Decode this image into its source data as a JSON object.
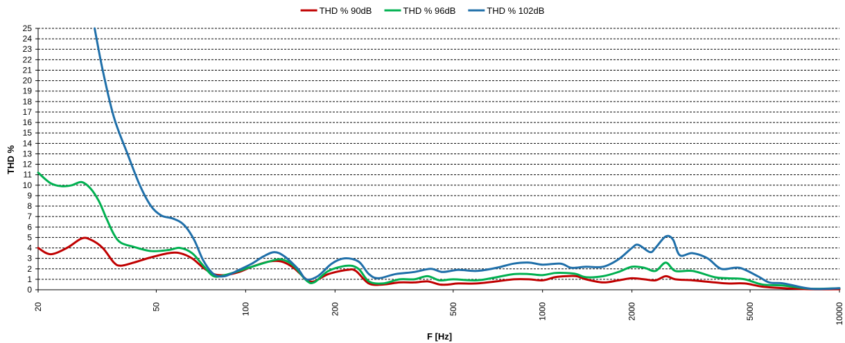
{
  "chart_data": {
    "type": "line",
    "xscale": "log",
    "xlabel": "F [Hz]",
    "ylabel": "THD %",
    "xlim": [
      20,
      10000
    ],
    "ylim": [
      0,
      25
    ],
    "yticks": [
      0,
      1,
      2,
      3,
      4,
      5,
      6,
      7,
      8,
      9,
      10,
      11,
      12,
      13,
      14,
      15,
      16,
      17,
      18,
      19,
      20,
      21,
      22,
      23,
      24,
      25
    ],
    "xticks": [
      20,
      50,
      100,
      200,
      500,
      1000,
      2000,
      5000,
      10000
    ],
    "grid": "horizontal-dashed",
    "legend_position": "top-center",
    "series": [
      {
        "name": "THD % 90dB",
        "color": "#C00000",
        "points": [
          [
            20,
            4.0
          ],
          [
            22,
            3.4
          ],
          [
            25,
            4.0
          ],
          [
            28,
            4.9
          ],
          [
            30,
            4.8
          ],
          [
            33,
            4.0
          ],
          [
            36,
            2.6
          ],
          [
            38,
            2.3
          ],
          [
            42,
            2.6
          ],
          [
            48,
            3.1
          ],
          [
            55,
            3.5
          ],
          [
            60,
            3.5
          ],
          [
            66,
            3.0
          ],
          [
            72,
            2.1
          ],
          [
            78,
            1.5
          ],
          [
            85,
            1.4
          ],
          [
            95,
            1.7
          ],
          [
            105,
            2.2
          ],
          [
            120,
            2.7
          ],
          [
            132,
            2.7
          ],
          [
            145,
            2.1
          ],
          [
            160,
            1.0
          ],
          [
            170,
            0.8
          ],
          [
            190,
            1.5
          ],
          [
            220,
            1.9
          ],
          [
            235,
            1.8
          ],
          [
            260,
            0.6
          ],
          [
            290,
            0.5
          ],
          [
            330,
            0.7
          ],
          [
            370,
            0.7
          ],
          [
            410,
            0.8
          ],
          [
            450,
            0.5
          ],
          [
            480,
            0.5
          ],
          [
            520,
            0.6
          ],
          [
            600,
            0.6
          ],
          [
            700,
            0.8
          ],
          [
            800,
            1.0
          ],
          [
            900,
            1.0
          ],
          [
            1000,
            0.9
          ],
          [
            1100,
            1.2
          ],
          [
            1200,
            1.3
          ],
          [
            1300,
            1.3
          ],
          [
            1400,
            1.0
          ],
          [
            1600,
            0.7
          ],
          [
            1800,
            0.9
          ],
          [
            2000,
            1.1
          ],
          [
            2200,
            1.0
          ],
          [
            2400,
            0.9
          ],
          [
            2600,
            1.3
          ],
          [
            2800,
            1.0
          ],
          [
            3200,
            0.9
          ],
          [
            3800,
            0.7
          ],
          [
            4200,
            0.6
          ],
          [
            4800,
            0.6
          ],
          [
            5500,
            0.3
          ],
          [
            6500,
            0.15
          ],
          [
            8000,
            0.05
          ],
          [
            10000,
            0.05
          ]
        ]
      },
      {
        "name": "THD % 96dB",
        "color": "#00B050",
        "points": [
          [
            20,
            11.2
          ],
          [
            22,
            10.2
          ],
          [
            24,
            9.9
          ],
          [
            26,
            10.0
          ],
          [
            28,
            10.3
          ],
          [
            30,
            9.7
          ],
          [
            32,
            8.5
          ],
          [
            34,
            6.8
          ],
          [
            36,
            5.3
          ],
          [
            38,
            4.5
          ],
          [
            42,
            4.1
          ],
          [
            48,
            3.7
          ],
          [
            55,
            3.8
          ],
          [
            60,
            4.0
          ],
          [
            66,
            3.5
          ],
          [
            72,
            2.3
          ],
          [
            78,
            1.3
          ],
          [
            85,
            1.4
          ],
          [
            95,
            1.8
          ],
          [
            105,
            2.2
          ],
          [
            120,
            2.7
          ],
          [
            132,
            2.9
          ],
          [
            145,
            2.3
          ],
          [
            160,
            0.9
          ],
          [
            170,
            0.7
          ],
          [
            190,
            1.8
          ],
          [
            220,
            2.3
          ],
          [
            240,
            2.0
          ],
          [
            260,
            0.8
          ],
          [
            290,
            0.6
          ],
          [
            330,
            1.0
          ],
          [
            370,
            1.0
          ],
          [
            410,
            1.3
          ],
          [
            450,
            0.9
          ],
          [
            500,
            1.0
          ],
          [
            600,
            0.9
          ],
          [
            700,
            1.2
          ],
          [
            800,
            1.5
          ],
          [
            900,
            1.5
          ],
          [
            1000,
            1.4
          ],
          [
            1100,
            1.6
          ],
          [
            1200,
            1.6
          ],
          [
            1300,
            1.5
          ],
          [
            1400,
            1.2
          ],
          [
            1600,
            1.3
          ],
          [
            1800,
            1.7
          ],
          [
            2000,
            2.2
          ],
          [
            2200,
            2.1
          ],
          [
            2400,
            1.8
          ],
          [
            2600,
            2.6
          ],
          [
            2800,
            1.8
          ],
          [
            3200,
            1.8
          ],
          [
            3800,
            1.2
          ],
          [
            4200,
            1.1
          ],
          [
            4800,
            1.0
          ],
          [
            5500,
            0.5
          ],
          [
            6500,
            0.4
          ],
          [
            8000,
            0.1
          ],
          [
            10000,
            0.15
          ]
        ]
      },
      {
        "name": "THD % 102dB",
        "color": "#1F6FA9",
        "points": [
          [
            31,
            25.0
          ],
          [
            33,
            21.0
          ],
          [
            36,
            16.5
          ],
          [
            40,
            13.0
          ],
          [
            44,
            10.0
          ],
          [
            48,
            8.0
          ],
          [
            52,
            7.1
          ],
          [
            57,
            6.8
          ],
          [
            62,
            6.2
          ],
          [
            67,
            4.8
          ],
          [
            72,
            2.8
          ],
          [
            78,
            1.5
          ],
          [
            85,
            1.3
          ],
          [
            95,
            1.9
          ],
          [
            105,
            2.5
          ],
          [
            115,
            3.2
          ],
          [
            125,
            3.6
          ],
          [
            135,
            3.2
          ],
          [
            150,
            2.0
          ],
          [
            160,
            1.0
          ],
          [
            175,
            1.3
          ],
          [
            195,
            2.5
          ],
          [
            215,
            3.0
          ],
          [
            240,
            2.7
          ],
          [
            260,
            1.5
          ],
          [
            280,
            1.1
          ],
          [
            320,
            1.5
          ],
          [
            370,
            1.7
          ],
          [
            420,
            2.0
          ],
          [
            460,
            1.7
          ],
          [
            520,
            1.9
          ],
          [
            600,
            1.8
          ],
          [
            700,
            2.1
          ],
          [
            800,
            2.5
          ],
          [
            900,
            2.6
          ],
          [
            1000,
            2.4
          ],
          [
            1150,
            2.5
          ],
          [
            1250,
            2.1
          ],
          [
            1400,
            2.2
          ],
          [
            1600,
            2.2
          ],
          [
            1800,
            2.9
          ],
          [
            2000,
            4.0
          ],
          [
            2100,
            4.3
          ],
          [
            2300,
            3.6
          ],
          [
            2400,
            4.0
          ],
          [
            2600,
            5.1
          ],
          [
            2750,
            4.8
          ],
          [
            2900,
            3.3
          ],
          [
            3200,
            3.5
          ],
          [
            3600,
            3.0
          ],
          [
            4000,
            2.0
          ],
          [
            4600,
            2.1
          ],
          [
            5300,
            1.3
          ],
          [
            5800,
            0.7
          ],
          [
            6500,
            0.6
          ],
          [
            8000,
            0.1
          ],
          [
            10000,
            0.15
          ]
        ]
      }
    ]
  }
}
